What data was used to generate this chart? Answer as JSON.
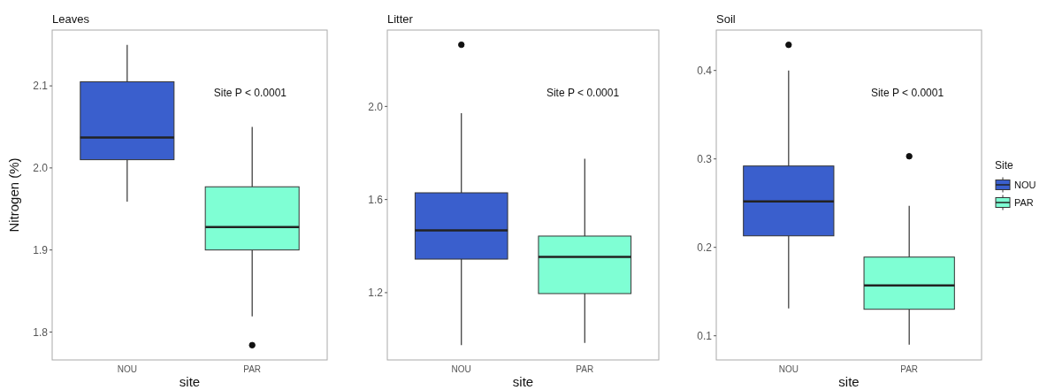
{
  "chart_data": [
    {
      "type": "box",
      "title": "Leaves",
      "xlabel": "site",
      "ylabel": "Nitrogen (%)",
      "categories": [
        "NOU",
        "PAR"
      ],
      "ylim": [
        1.766,
        2.168
      ],
      "yticks": [
        {
          "value": 1.8,
          "label": "1.8"
        },
        {
          "value": 1.9,
          "label": "1.9"
        },
        {
          "value": 2,
          "label": "2.0"
        },
        {
          "value": 2.1,
          "label": "2.1"
        }
      ],
      "grid": false,
      "legend": false,
      "annotations": [
        "Site P < 0.0001"
      ],
      "series": [
        {
          "color": "#3a5fcd",
          "boxes": [
            {
              "low": 1.959,
              "q1": 2.01,
              "median": 2.037,
              "q3": 2.105,
              "high": 2.15
            },
            null
          ]
        },
        {
          "color": "#7fffd4",
          "boxes": [
            null,
            {
              "low": 1.819,
              "q1": 1.9,
              "median": 1.928,
              "q3": 1.977,
              "high": 2.05,
              "outliers": [
                1.784
              ]
            }
          ]
        }
      ]
    },
    {
      "type": "box",
      "title": "Litter",
      "xlabel": "site",
      "categories": [
        "NOU",
        "PAR"
      ],
      "ylim": [
        0.911,
        2.328
      ],
      "yticks": [
        {
          "value": 1.2,
          "label": "1.2"
        },
        {
          "value": 1.6,
          "label": "1.6"
        },
        {
          "value": 2,
          "label": "2.0"
        }
      ],
      "grid": false,
      "legend": false,
      "annotations": [
        "Site P < 0.0001"
      ],
      "series": [
        {
          "color": "#3a5fcd",
          "boxes": [
            {
              "low": 0.975,
              "q1": 1.344,
              "median": 1.468,
              "q3": 1.629,
              "high": 1.971,
              "outliers": [
                2.265
              ]
            },
            null
          ]
        },
        {
          "color": "#7fffd4",
          "boxes": [
            null,
            {
              "low": 0.984,
              "q1": 1.196,
              "median": 1.354,
              "q3": 1.443,
              "high": 1.775
            }
          ]
        }
      ]
    },
    {
      "type": "box",
      "title": "Soil",
      "xlabel": "site",
      "categories": [
        "NOU",
        "PAR"
      ],
      "ylim": [
        0.0727,
        0.4457
      ],
      "yticks": [
        0.1,
        0.2,
        0.3,
        0.4
      ],
      "grid": false,
      "legend": "right",
      "legend_title": "Site",
      "annotations": [
        "Site P < 0.0001"
      ],
      "series": [
        {
          "name": "NOU",
          "color": "#3a5fcd",
          "boxes": [
            {
              "low": 0.131,
              "q1": 0.213,
              "median": 0.252,
              "q3": 0.292,
              "high": 0.4,
              "outliers": [
                0.429
              ]
            },
            null
          ]
        },
        {
          "name": "PAR",
          "color": "#7fffd4",
          "boxes": [
            null,
            {
              "low": 0.09,
              "q1": 0.13,
              "median": 0.157,
              "q3": 0.189,
              "high": 0.247,
              "outliers": [
                0.303
              ]
            }
          ]
        }
      ]
    }
  ]
}
